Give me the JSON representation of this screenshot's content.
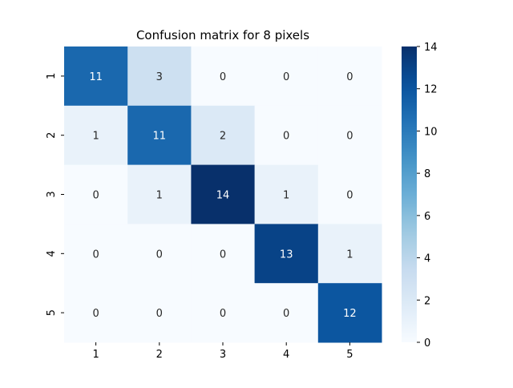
{
  "chart_data": {
    "type": "heatmap",
    "title": "Confusion matrix for 8 pixels",
    "xlabel": "",
    "ylabel": "",
    "x_tick_labels": [
      "1",
      "2",
      "3",
      "4",
      "5"
    ],
    "y_tick_labels": [
      "1",
      "2",
      "3",
      "4",
      "5"
    ],
    "matrix": [
      [
        11,
        3,
        0,
        0,
        0
      ],
      [
        1,
        11,
        2,
        0,
        0
      ],
      [
        0,
        1,
        14,
        1,
        0
      ],
      [
        0,
        0,
        0,
        13,
        1
      ],
      [
        0,
        0,
        0,
        0,
        12
      ]
    ],
    "colormap": "Blues",
    "vmin": 0,
    "vmax": 14,
    "colorbar_ticks": [
      "0",
      "2",
      "4",
      "6",
      "8",
      "10",
      "12",
      "14"
    ],
    "colors": {
      "low": "#f7fbff",
      "high": "#08306b",
      "dark_text": "#262626",
      "light_text": "#ffffff"
    }
  }
}
